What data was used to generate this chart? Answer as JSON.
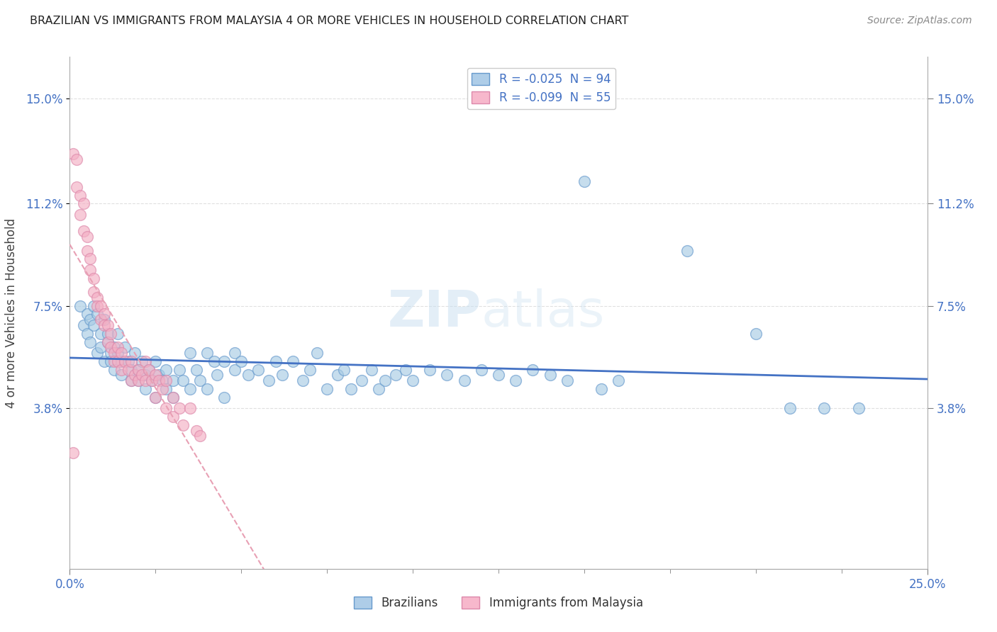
{
  "title": "BRAZILIAN VS IMMIGRANTS FROM MALAYSIA 4 OR MORE VEHICLES IN HOUSEHOLD CORRELATION CHART",
  "source": "Source: ZipAtlas.com",
  "ylabel": "4 or more Vehicles in Household",
  "ytick_labels": [
    "3.8%",
    "7.5%",
    "11.2%",
    "15.0%"
  ],
  "ytick_values": [
    0.038,
    0.075,
    0.112,
    0.15
  ],
  "xlim": [
    0.0,
    0.25
  ],
  "ylim": [
    -0.02,
    0.165
  ],
  "legend_entries": [
    {
      "label": "R = -0.025  N = 94",
      "color": "#aecde8"
    },
    {
      "label": "R = -0.099  N = 55",
      "color": "#f7b8cc"
    }
  ],
  "legend_bottom": [
    "Brazilians",
    "Immigrants from Malaysia"
  ],
  "watermark_zip": "ZIP",
  "watermark_atlas": "atlas",
  "title_color": "#222222",
  "source_color": "#888888",
  "blue_color": "#a8cce4",
  "pink_color": "#f4afc4",
  "blue_line_color": "#4472c4",
  "pink_line_color": "#e8a0b4",
  "grid_color": "#e0e0e0",
  "background_color": "#ffffff",
  "brazil_scatter": [
    [
      0.003,
      0.075
    ],
    [
      0.004,
      0.068
    ],
    [
      0.005,
      0.072
    ],
    [
      0.005,
      0.065
    ],
    [
      0.006,
      0.07
    ],
    [
      0.006,
      0.062
    ],
    [
      0.007,
      0.075
    ],
    [
      0.007,
      0.068
    ],
    [
      0.008,
      0.072
    ],
    [
      0.008,
      0.058
    ],
    [
      0.009,
      0.065
    ],
    [
      0.009,
      0.06
    ],
    [
      0.01,
      0.07
    ],
    [
      0.01,
      0.055
    ],
    [
      0.011,
      0.065
    ],
    [
      0.011,
      0.062
    ],
    [
      0.012,
      0.058
    ],
    [
      0.012,
      0.055
    ],
    [
      0.013,
      0.06
    ],
    [
      0.013,
      0.052
    ],
    [
      0.014,
      0.065
    ],
    [
      0.014,
      0.058
    ],
    [
      0.015,
      0.055
    ],
    [
      0.015,
      0.05
    ],
    [
      0.016,
      0.06
    ],
    [
      0.017,
      0.055
    ],
    [
      0.018,
      0.052
    ],
    [
      0.018,
      0.048
    ],
    [
      0.019,
      0.058
    ],
    [
      0.02,
      0.052
    ],
    [
      0.02,
      0.048
    ],
    [
      0.021,
      0.055
    ],
    [
      0.022,
      0.05
    ],
    [
      0.022,
      0.045
    ],
    [
      0.023,
      0.052
    ],
    [
      0.024,
      0.048
    ],
    [
      0.025,
      0.055
    ],
    [
      0.025,
      0.042
    ],
    [
      0.026,
      0.05
    ],
    [
      0.027,
      0.048
    ],
    [
      0.028,
      0.052
    ],
    [
      0.028,
      0.045
    ],
    [
      0.03,
      0.048
    ],
    [
      0.03,
      0.042
    ],
    [
      0.032,
      0.052
    ],
    [
      0.033,
      0.048
    ],
    [
      0.035,
      0.058
    ],
    [
      0.035,
      0.045
    ],
    [
      0.037,
      0.052
    ],
    [
      0.038,
      0.048
    ],
    [
      0.04,
      0.058
    ],
    [
      0.04,
      0.045
    ],
    [
      0.042,
      0.055
    ],
    [
      0.043,
      0.05
    ],
    [
      0.045,
      0.055
    ],
    [
      0.045,
      0.042
    ],
    [
      0.048,
      0.058
    ],
    [
      0.048,
      0.052
    ],
    [
      0.05,
      0.055
    ],
    [
      0.052,
      0.05
    ],
    [
      0.055,
      0.052
    ],
    [
      0.058,
      0.048
    ],
    [
      0.06,
      0.055
    ],
    [
      0.062,
      0.05
    ],
    [
      0.065,
      0.055
    ],
    [
      0.068,
      0.048
    ],
    [
      0.07,
      0.052
    ],
    [
      0.072,
      0.058
    ],
    [
      0.075,
      0.045
    ],
    [
      0.078,
      0.05
    ],
    [
      0.08,
      0.052
    ],
    [
      0.082,
      0.045
    ],
    [
      0.085,
      0.048
    ],
    [
      0.088,
      0.052
    ],
    [
      0.09,
      0.045
    ],
    [
      0.092,
      0.048
    ],
    [
      0.095,
      0.05
    ],
    [
      0.098,
      0.052
    ],
    [
      0.1,
      0.048
    ],
    [
      0.105,
      0.052
    ],
    [
      0.11,
      0.05
    ],
    [
      0.115,
      0.048
    ],
    [
      0.12,
      0.052
    ],
    [
      0.125,
      0.05
    ],
    [
      0.13,
      0.048
    ],
    [
      0.135,
      0.052
    ],
    [
      0.14,
      0.05
    ],
    [
      0.145,
      0.048
    ],
    [
      0.15,
      0.12
    ],
    [
      0.155,
      0.045
    ],
    [
      0.16,
      0.048
    ],
    [
      0.18,
      0.095
    ],
    [
      0.2,
      0.065
    ],
    [
      0.21,
      0.038
    ],
    [
      0.22,
      0.038
    ],
    [
      0.23,
      0.038
    ]
  ],
  "malaysia_scatter": [
    [
      0.001,
      0.13
    ],
    [
      0.002,
      0.128
    ],
    [
      0.002,
      0.118
    ],
    [
      0.003,
      0.115
    ],
    [
      0.003,
      0.108
    ],
    [
      0.004,
      0.112
    ],
    [
      0.004,
      0.102
    ],
    [
      0.005,
      0.1
    ],
    [
      0.005,
      0.095
    ],
    [
      0.006,
      0.092
    ],
    [
      0.006,
      0.088
    ],
    [
      0.007,
      0.085
    ],
    [
      0.007,
      0.08
    ],
    [
      0.008,
      0.078
    ],
    [
      0.008,
      0.075
    ],
    [
      0.009,
      0.075
    ],
    [
      0.009,
      0.07
    ],
    [
      0.01,
      0.072
    ],
    [
      0.01,
      0.068
    ],
    [
      0.011,
      0.068
    ],
    [
      0.011,
      0.062
    ],
    [
      0.012,
      0.065
    ],
    [
      0.012,
      0.06
    ],
    [
      0.013,
      0.058
    ],
    [
      0.013,
      0.055
    ],
    [
      0.014,
      0.06
    ],
    [
      0.014,
      0.055
    ],
    [
      0.015,
      0.058
    ],
    [
      0.015,
      0.052
    ],
    [
      0.016,
      0.055
    ],
    [
      0.017,
      0.052
    ],
    [
      0.018,
      0.055
    ],
    [
      0.018,
      0.048
    ],
    [
      0.019,
      0.05
    ],
    [
      0.02,
      0.052
    ],
    [
      0.02,
      0.048
    ],
    [
      0.021,
      0.05
    ],
    [
      0.022,
      0.055
    ],
    [
      0.022,
      0.048
    ],
    [
      0.023,
      0.052
    ],
    [
      0.024,
      0.048
    ],
    [
      0.025,
      0.05
    ],
    [
      0.025,
      0.042
    ],
    [
      0.026,
      0.048
    ],
    [
      0.027,
      0.045
    ],
    [
      0.028,
      0.048
    ],
    [
      0.028,
      0.038
    ],
    [
      0.03,
      0.042
    ],
    [
      0.03,
      0.035
    ],
    [
      0.032,
      0.038
    ],
    [
      0.033,
      0.032
    ],
    [
      0.035,
      0.038
    ],
    [
      0.037,
      0.03
    ],
    [
      0.038,
      0.028
    ],
    [
      0.001,
      0.022
    ]
  ]
}
